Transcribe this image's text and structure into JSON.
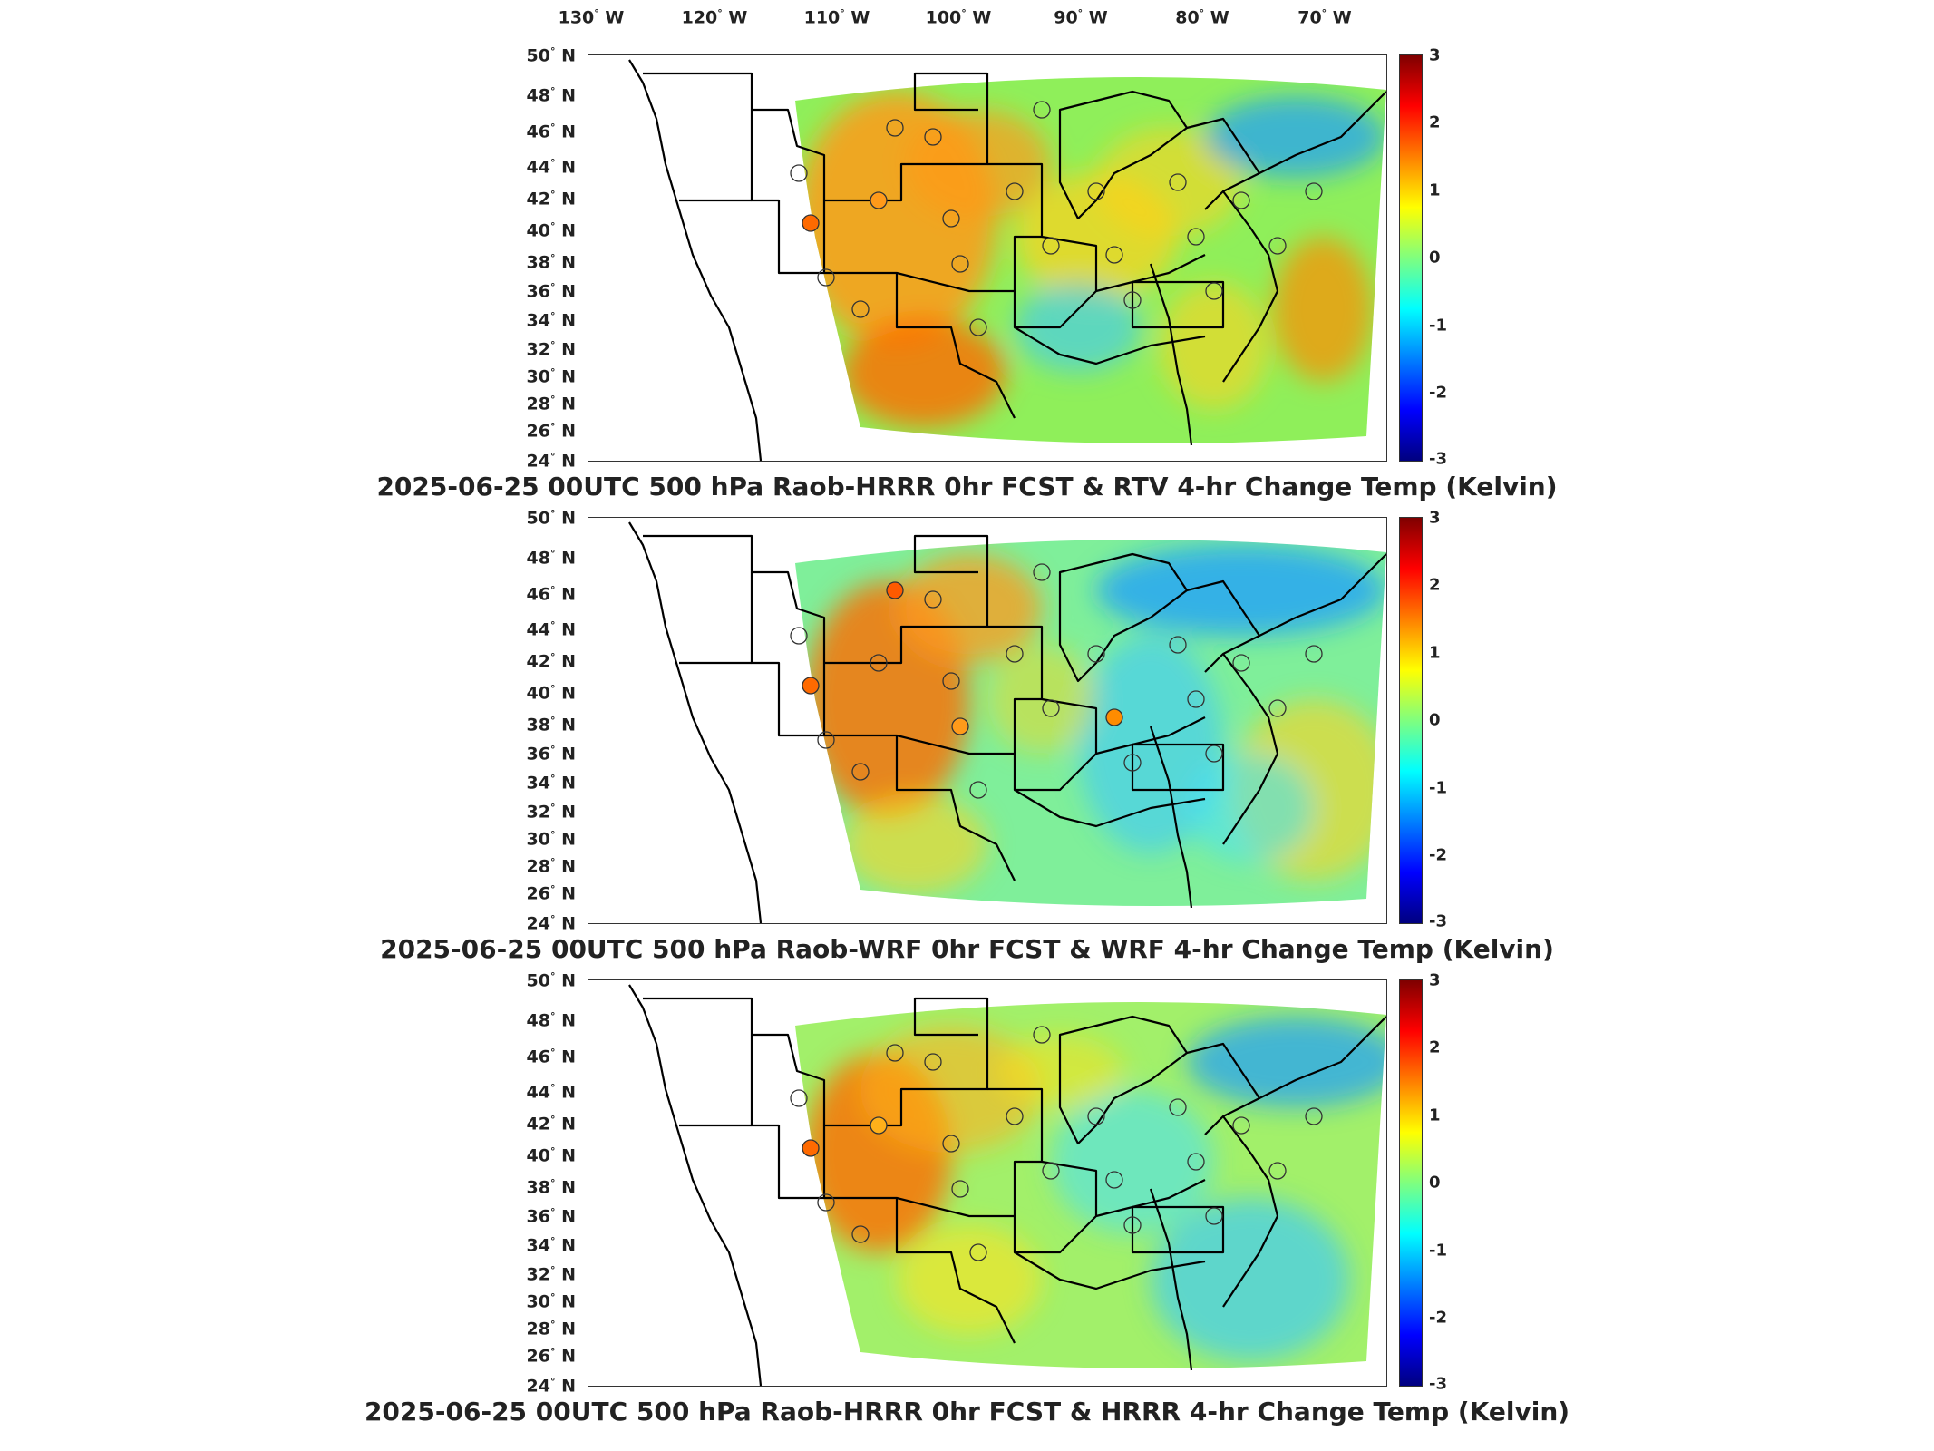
{
  "longitude_labels": [
    "130",
    "120",
    "110",
    "100",
    "90",
    "80",
    "70"
  ],
  "longitude_suffix": "W",
  "degree_symbol": "°",
  "latitude_labels": [
    "50",
    "48",
    "46",
    "44",
    "42",
    "40",
    "38",
    "36",
    "34",
    "32",
    "30",
    "28",
    "26",
    "24"
  ],
  "latitude_suffix": "N",
  "colorbar": {
    "range": [
      -3,
      3
    ],
    "ticks": [
      "3",
      "2",
      "1",
      "0",
      "-1",
      "-2",
      "-3"
    ],
    "colormap": "jet",
    "colors": [
      "#7f0000",
      "#ff0000",
      "#ff7f00",
      "#ffff00",
      "#7fff7f",
      "#00ffff",
      "#007fff",
      "#0000ff",
      "#00007f"
    ]
  },
  "panels": [
    {
      "caption": "2025-06-25 00UTC 500 hPa Raob-HRRR 0hr FCST & RTV 4-hr Change Temp (Kelvin)",
      "warm_regions": [
        "#ff9a1a",
        "#ff8c00",
        "#ffd21a",
        "#ff6a00"
      ],
      "cool_regions": [
        "#1a9cff",
        "#3bc8ff"
      ]
    },
    {
      "caption": "2025-06-25 00UTC 500 hPa Raob-WRF 0hr FCST & WRF 4-hr Change Temp (Kelvin)",
      "warm_regions": [
        "#ff6a00",
        "#ff9a1a",
        "#ffd21a"
      ],
      "cool_regions": [
        "#1a9cff",
        "#3bc8ff",
        "#46e0ff"
      ]
    },
    {
      "caption": "2025-06-25 00UTC 500 hPa Raob-HRRR 0hr FCST & HRRR 4-hr Change Temp (Kelvin)",
      "warm_regions": [
        "#ff6a00",
        "#ffb01a",
        "#ffe21a"
      ],
      "cool_regions": [
        "#1a9cff",
        "#3bc8ff",
        "#46e0ff"
      ]
    }
  ]
}
